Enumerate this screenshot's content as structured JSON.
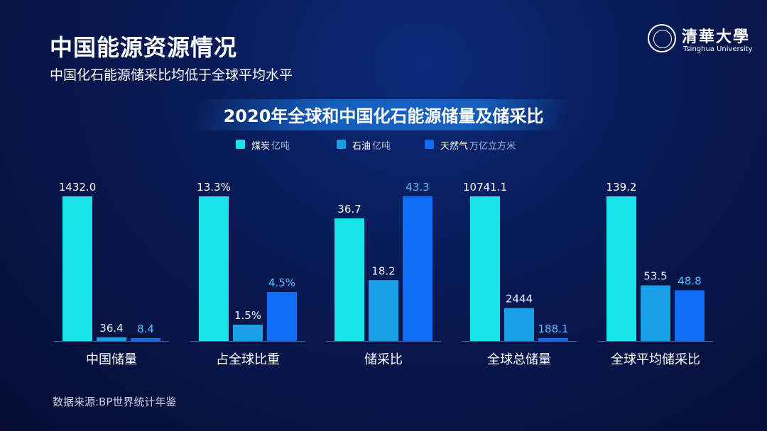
{
  "slide": {
    "title": "中国能源资源情况",
    "subtitle": "中国化石能源储采比均低于全球平均水平",
    "source": "数据来源:BP世界统计年鉴",
    "logo": {
      "name_cn": "清華大學",
      "name_en": "Tsinghua University"
    }
  },
  "chart_data": {
    "type": "bar",
    "title": "2020年全球和中国化石能源储量及储采比",
    "categories": [
      "中国储量",
      "占全球比重",
      "储采比",
      "全球总储量",
      "全球平均储采比"
    ],
    "series": [
      {
        "name": "煤炭",
        "unit": "亿吨",
        "color": "#19e3ea",
        "values": [
          1432.0,
          13.3,
          36.7,
          10741.1,
          139.2
        ],
        "labels": [
          "1432.0",
          "13.3%",
          "36.7",
          "10741.1",
          "139.2"
        ]
      },
      {
        "name": "石油",
        "unit": "亿吨",
        "color": "#1aa0e6",
        "values": [
          36.4,
          1.5,
          18.2,
          2444,
          53.5
        ],
        "labels": [
          "36.4",
          "1.5%",
          "18.2",
          "2444",
          "53.5"
        ]
      },
      {
        "name": "天然气",
        "unit": "万亿立方米",
        "color": "#0f6cf5",
        "values": [
          8.4,
          4.5,
          43.3,
          188.1,
          48.8
        ],
        "labels": [
          "8.4",
          "4.5%",
          "43.3",
          "188.1",
          "48.8"
        ]
      }
    ],
    "scale": "each category group uses its own independent scale",
    "grid": false,
    "legend_position": "top-center"
  }
}
